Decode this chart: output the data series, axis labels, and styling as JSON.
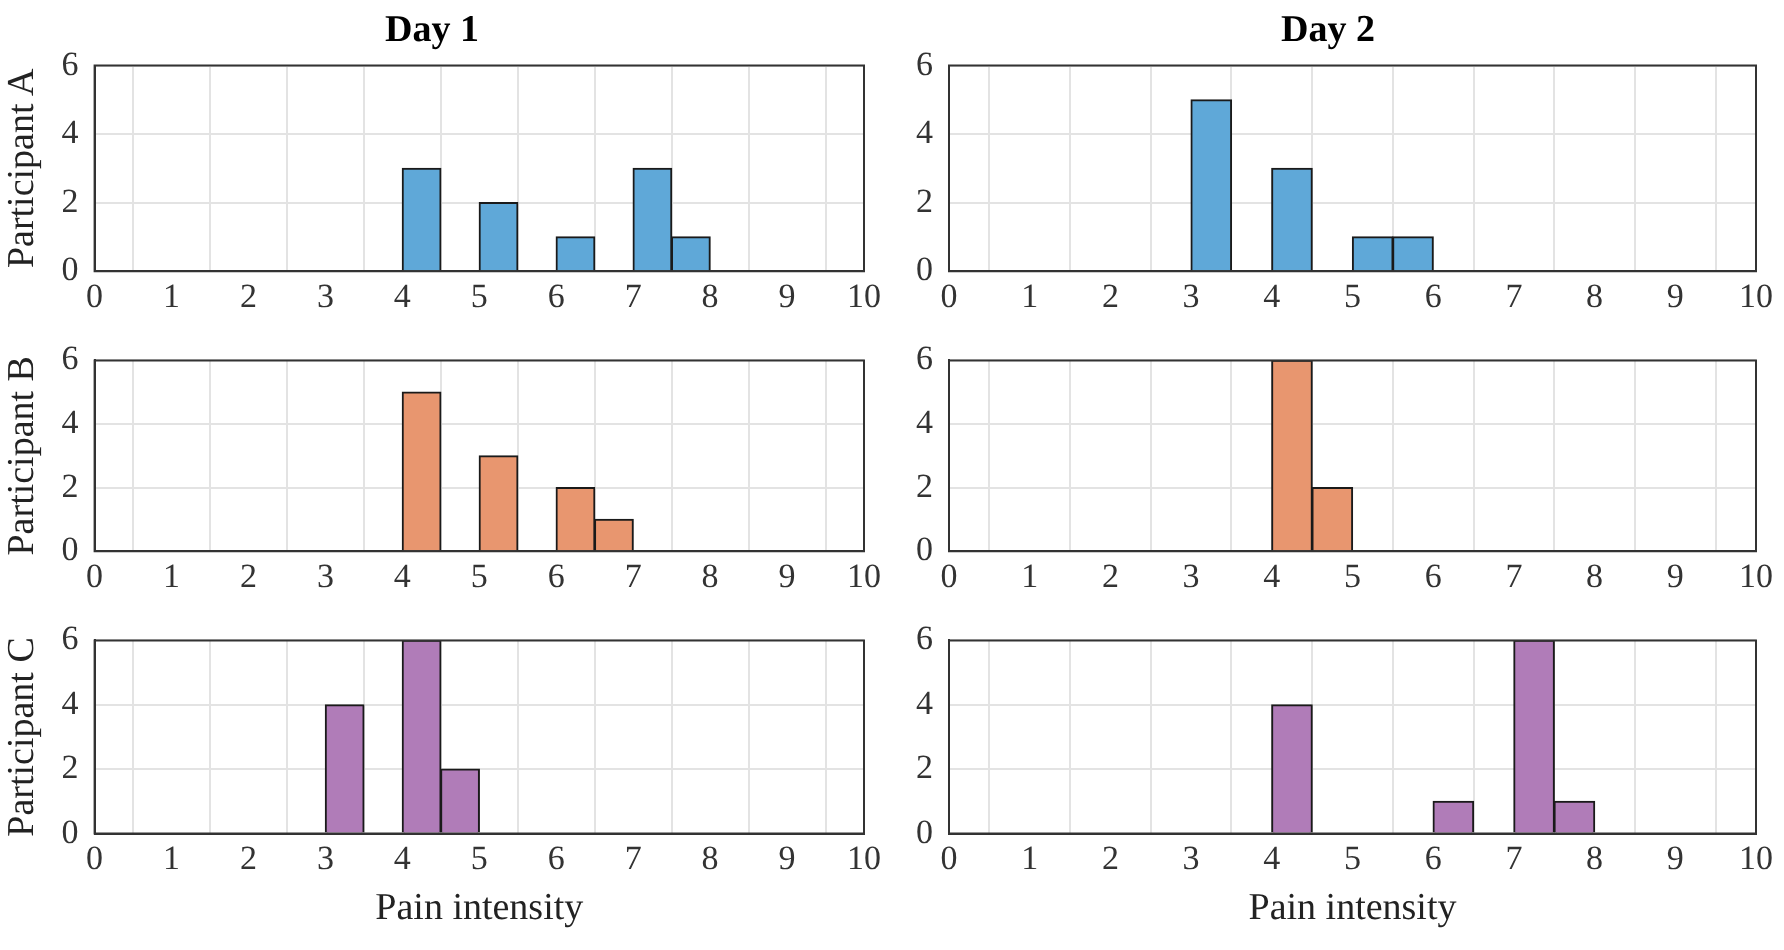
{
  "chart_data": [
    {
      "type": "histogram",
      "title": "Day 1",
      "ylabel": "Participant A",
      "bins": [
        0,
        0.5,
        1,
        1.5,
        2,
        2.5,
        3,
        3.5,
        4,
        4.5,
        5,
        5.5,
        6,
        6.5,
        7,
        7.5,
        8,
        8.5,
        9,
        9.5,
        10
      ],
      "values": [
        0,
        0,
        0,
        0,
        0,
        0,
        0,
        0,
        3,
        0,
        2,
        0,
        1,
        0,
        3,
        1,
        0,
        0,
        0,
        0
      ],
      "color": "#5fa8d8",
      "xlim": [
        0,
        10
      ],
      "xticks": [
        0,
        1,
        2,
        3,
        4,
        5,
        6,
        7,
        8,
        9,
        10
      ],
      "ylim": [
        0,
        6
      ],
      "yticks": [
        0,
        2,
        4,
        6
      ],
      "grid": true
    },
    {
      "type": "histogram",
      "title": "Day 2",
      "bins": [
        0,
        0.5,
        1,
        1.5,
        2,
        2.5,
        3,
        3.5,
        4,
        4.5,
        5,
        5.5,
        6,
        6.5,
        7,
        7.5,
        8,
        8.5,
        9,
        9.5,
        10
      ],
      "values": [
        0,
        0,
        0,
        0,
        0,
        0,
        5,
        0,
        3,
        0,
        1,
        1,
        0,
        0,
        0,
        0,
        0,
        0,
        0,
        0
      ],
      "color": "#5fa8d8",
      "xlim": [
        0,
        10
      ],
      "xticks": [
        0,
        1,
        2,
        3,
        4,
        5,
        6,
        7,
        8,
        9,
        10
      ],
      "ylim": [
        0,
        6
      ],
      "yticks": [
        0,
        2,
        4,
        6
      ],
      "grid": true
    },
    {
      "type": "histogram",
      "ylabel": "Participant B",
      "bins": [
        0,
        0.5,
        1,
        1.5,
        2,
        2.5,
        3,
        3.5,
        4,
        4.5,
        5,
        5.5,
        6,
        6.5,
        7,
        7.5,
        8,
        8.5,
        9,
        9.5,
        10
      ],
      "values": [
        0,
        0,
        0,
        0,
        0,
        0,
        0,
        0,
        5,
        0,
        3,
        0,
        2,
        1,
        0,
        0,
        0,
        0,
        0,
        0
      ],
      "color": "#e8966f",
      "xlim": [
        0,
        10
      ],
      "xticks": [
        0,
        1,
        2,
        3,
        4,
        5,
        6,
        7,
        8,
        9,
        10
      ],
      "ylim": [
        0,
        6
      ],
      "yticks": [
        0,
        2,
        4,
        6
      ],
      "grid": true
    },
    {
      "type": "histogram",
      "bins": [
        0,
        0.5,
        1,
        1.5,
        2,
        2.5,
        3,
        3.5,
        4,
        4.5,
        5,
        5.5,
        6,
        6.5,
        7,
        7.5,
        8,
        8.5,
        9,
        9.5,
        10
      ],
      "values": [
        0,
        0,
        0,
        0,
        0,
        0,
        0,
        0,
        6,
        2,
        0,
        0,
        0,
        0,
        0,
        0,
        0,
        0,
        0,
        0
      ],
      "color": "#e8966f",
      "xlim": [
        0,
        10
      ],
      "xticks": [
        0,
        1,
        2,
        3,
        4,
        5,
        6,
        7,
        8,
        9,
        10
      ],
      "ylim": [
        0,
        6
      ],
      "yticks": [
        0,
        2,
        4,
        6
      ],
      "grid": true
    },
    {
      "type": "histogram",
      "ylabel": "Participant C",
      "xlabel": "Pain intensity",
      "bins": [
        0,
        0.5,
        1,
        1.5,
        2,
        2.5,
        3,
        3.5,
        4,
        4.5,
        5,
        5.5,
        6,
        6.5,
        7,
        7.5,
        8,
        8.5,
        9,
        9.5,
        10
      ],
      "values": [
        0,
        0,
        0,
        0,
        0,
        0,
        4,
        0,
        6,
        2,
        0,
        0,
        0,
        0,
        0,
        0,
        0,
        0,
        0,
        0
      ],
      "color": "#b07cb8",
      "xlim": [
        0,
        10
      ],
      "xticks": [
        0,
        1,
        2,
        3,
        4,
        5,
        6,
        7,
        8,
        9,
        10
      ],
      "ylim": [
        0,
        6
      ],
      "yticks": [
        0,
        2,
        4,
        6
      ],
      "grid": true
    },
    {
      "type": "histogram",
      "xlabel": "Pain intensity",
      "bins": [
        0,
        0.5,
        1,
        1.5,
        2,
        2.5,
        3,
        3.5,
        4,
        4.5,
        5,
        5.5,
        6,
        6.5,
        7,
        7.5,
        8,
        8.5,
        9,
        9.5,
        10
      ],
      "values": [
        0,
        0,
        0,
        0,
        0,
        0,
        0,
        0,
        4,
        0,
        0,
        0,
        1,
        0,
        6,
        1,
        0,
        0,
        0,
        0
      ],
      "color": "#b07cb8",
      "xlim": [
        0,
        10
      ],
      "xticks": [
        0,
        1,
        2,
        3,
        4,
        5,
        6,
        7,
        8,
        9,
        10
      ],
      "ylim": [
        0,
        6
      ],
      "yticks": [
        0,
        2,
        4,
        6
      ],
      "grid": true
    }
  ]
}
